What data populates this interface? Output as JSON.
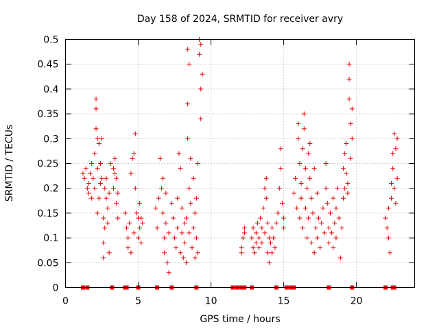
{
  "chart_data": {
    "type": "scatter",
    "title": "Day 158 of 2024, SRMTID for receiver avry",
    "xlabel": "GPS time / hours",
    "ylabel": "SRMTID / TECUs",
    "xlim": [
      0,
      24
    ],
    "ylim": [
      0,
      0.5
    ],
    "x_ticks": [
      0,
      5,
      10,
      15,
      20
    ],
    "x_tick_labels": [
      "0",
      "5",
      "10",
      "15",
      "20"
    ],
    "y_ticks": [
      0,
      0.05,
      0.1,
      0.15,
      0.2,
      0.25,
      0.3,
      0.35,
      0.4,
      0.45,
      0.5
    ],
    "y_tick_labels": [
      "0",
      "0.05",
      "0.1",
      "0.15",
      "0.2",
      "0.25",
      "0.3",
      "0.35",
      "0.4",
      "0.45",
      "0.5"
    ],
    "grid": true,
    "marker": "plus",
    "color": "#e00000",
    "series": [
      {
        "name": "SRMTID",
        "points": [
          [
            1.2,
            0.23
          ],
          [
            1.3,
            0.22
          ],
          [
            1.4,
            0.24
          ],
          [
            1.5,
            0.2
          ],
          [
            1.6,
            0.21
          ],
          [
            1.6,
            0.19
          ],
          [
            1.7,
            0.23
          ],
          [
            1.8,
            0.25
          ],
          [
            1.8,
            0.18
          ],
          [
            1.9,
            0.22
          ],
          [
            2.0,
            0.2
          ],
          [
            2.0,
            0.27
          ],
          [
            2.1,
            0.38
          ],
          [
            2.1,
            0.36
          ],
          [
            2.1,
            0.32
          ],
          [
            2.2,
            0.3
          ],
          [
            2.2,
            0.24
          ],
          [
            2.2,
            0.15
          ],
          [
            2.3,
            0.29
          ],
          [
            2.3,
            0.18
          ],
          [
            2.4,
            0.25
          ],
          [
            2.4,
            0.21
          ],
          [
            2.5,
            0.3
          ],
          [
            2.5,
            0.22
          ],
          [
            2.6,
            0.14
          ],
          [
            2.6,
            0.09
          ],
          [
            2.6,
            0.06
          ],
          [
            2.7,
            0.2
          ],
          [
            2.7,
            0.12
          ],
          [
            2.8,
            0.18
          ],
          [
            2.8,
            0.22
          ],
          [
            2.9,
            0.16
          ],
          [
            2.9,
            0.13
          ],
          [
            3.0,
            0.19
          ],
          [
            3.0,
            0.07
          ],
          [
            3.1,
            0.25
          ],
          [
            3.3,
            0.24
          ],
          [
            3.3,
            0.2
          ],
          [
            3.4,
            0.23
          ],
          [
            3.5,
            0.22
          ],
          [
            3.5,
            0.17
          ],
          [
            3.6,
            0.14
          ],
          [
            3.6,
            0.19
          ],
          [
            3.4,
            0.26
          ],
          [
            4.1,
            0.15
          ],
          [
            4.2,
            0.12
          ],
          [
            4.3,
            0.1
          ],
          [
            4.3,
            0.08
          ],
          [
            4.4,
            0.13
          ],
          [
            4.5,
            0.07
          ],
          [
            4.5,
            0.23
          ],
          [
            4.6,
            0.26
          ],
          [
            4.7,
            0.27
          ],
          [
            4.8,
            0.31
          ],
          [
            4.8,
            0.2
          ],
          [
            4.7,
            0.11
          ],
          [
            4.9,
            0.15
          ],
          [
            5.0,
            0.14
          ],
          [
            5.0,
            0.1
          ],
          [
            5.1,
            0.12
          ],
          [
            5.1,
            0.17
          ],
          [
            5.2,
            0.09
          ],
          [
            5.2,
            0.14
          ],
          [
            5.3,
            0.13
          ],
          [
            6.2,
            0.16
          ],
          [
            6.3,
            0.12
          ],
          [
            6.4,
            0.18
          ],
          [
            6.5,
            0.26
          ],
          [
            6.6,
            0.2
          ],
          [
            6.7,
            0.22
          ],
          [
            6.7,
            0.15
          ],
          [
            6.8,
            0.1
          ],
          [
            6.8,
            0.07
          ],
          [
            6.9,
            0.13
          ],
          [
            6.9,
            0.19
          ],
          [
            7.0,
            0.05
          ],
          [
            7.1,
            0.11
          ],
          [
            7.1,
            0.03
          ],
          [
            7.3,
            0.17
          ],
          [
            7.4,
            0.14
          ],
          [
            7.5,
            0.1
          ],
          [
            7.6,
            0.08
          ],
          [
            7.7,
            0.18
          ],
          [
            7.7,
            0.12
          ],
          [
            7.8,
            0.27
          ],
          [
            7.9,
            0.24
          ],
          [
            7.9,
            0.07
          ],
          [
            8.0,
            0.16
          ],
          [
            8.0,
            0.11
          ],
          [
            8.1,
            0.06
          ],
          [
            8.2,
            0.13
          ],
          [
            8.2,
            0.09
          ],
          [
            8.3,
            0.05
          ],
          [
            8.3,
            0.14
          ],
          [
            8.4,
            0.48
          ],
          [
            8.4,
            0.3
          ],
          [
            8.4,
            0.37
          ],
          [
            8.5,
            0.45
          ],
          [
            8.5,
            0.2
          ],
          [
            8.5,
            0.11
          ],
          [
            8.6,
            0.26
          ],
          [
            8.6,
            0.17
          ],
          [
            8.7,
            0.08
          ],
          [
            8.8,
            0.22
          ],
          [
            8.8,
            0.12
          ],
          [
            8.9,
            0.15
          ],
          [
            8.9,
            0.06
          ],
          [
            9.0,
            0.1
          ],
          [
            9.0,
            0.18
          ],
          [
            9.1,
            0.25
          ],
          [
            9.1,
            0.07
          ],
          [
            9.2,
            0.5
          ],
          [
            9.2,
            0.47
          ],
          [
            9.3,
            0.49
          ],
          [
            9.3,
            0.4
          ],
          [
            9.3,
            0.34
          ],
          [
            9.4,
            0.43
          ],
          [
            12.1,
            0.08
          ],
          [
            12.1,
            0.07
          ],
          [
            12.2,
            0.1
          ],
          [
            12.3,
            0.11
          ],
          [
            12.3,
            0.12
          ],
          [
            12.8,
            0.1
          ],
          [
            12.9,
            0.08
          ],
          [
            12.9,
            0.12
          ],
          [
            13.0,
            0.07
          ],
          [
            13.1,
            0.11
          ],
          [
            13.1,
            0.09
          ],
          [
            13.2,
            0.13
          ],
          [
            13.3,
            0.1
          ],
          [
            13.3,
            0.08
          ],
          [
            13.4,
            0.14
          ],
          [
            13.5,
            0.12
          ],
          [
            13.5,
            0.09
          ],
          [
            13.6,
            0.16
          ],
          [
            13.7,
            0.2
          ],
          [
            13.7,
            0.11
          ],
          [
            13.8,
            0.18
          ],
          [
            13.8,
            0.22
          ],
          [
            13.9,
            0.07
          ],
          [
            13.9,
            0.13
          ],
          [
            14.0,
            0.1
          ],
          [
            14.0,
            0.05
          ],
          [
            14.1,
            0.09
          ],
          [
            14.2,
            0.12
          ],
          [
            14.2,
            0.07
          ],
          [
            14.3,
            0.1
          ],
          [
            14.4,
            0.08
          ],
          [
            14.5,
            0.13
          ],
          [
            14.6,
            0.15
          ],
          [
            14.7,
            0.2
          ],
          [
            14.8,
            0.28
          ],
          [
            14.8,
            0.24
          ],
          [
            14.9,
            0.17
          ],
          [
            15.0,
            0.12
          ],
          [
            15.0,
            0.14
          ],
          [
            15.7,
            0.19
          ],
          [
            15.8,
            0.22
          ],
          [
            15.9,
            0.16
          ],
          [
            16.0,
            0.33
          ],
          [
            16.0,
            0.3
          ],
          [
            16.1,
            0.25
          ],
          [
            16.1,
            0.14
          ],
          [
            16.2,
            0.21
          ],
          [
            16.2,
            0.18
          ],
          [
            16.3,
            0.28
          ],
          [
            16.3,
            0.12
          ],
          [
            16.4,
            0.35
          ],
          [
            16.4,
            0.32
          ],
          [
            16.5,
            0.24
          ],
          [
            16.5,
            0.16
          ],
          [
            16.6,
            0.2
          ],
          [
            16.6,
            0.1
          ],
          [
            16.7,
            0.27
          ],
          [
            16.7,
            0.14
          ],
          [
            16.8,
            0.22
          ],
          [
            16.8,
            0.29
          ],
          [
            16.9,
            0.18
          ],
          [
            16.9,
            0.09
          ],
          [
            17.0,
            0.15
          ],
          [
            17.1,
            0.24
          ],
          [
            17.1,
            0.07
          ],
          [
            17.2,
            0.12
          ],
          [
            17.3,
            0.19
          ],
          [
            17.3,
            0.1
          ],
          [
            17.4,
            0.14
          ],
          [
            17.5,
            0.08
          ],
          [
            17.6,
            0.13
          ],
          [
            17.7,
            0.16
          ],
          [
            17.8,
            0.11
          ],
          [
            17.9,
            0.25
          ],
          [
            17.9,
            0.2
          ],
          [
            18.0,
            0.17
          ],
          [
            18.1,
            0.12
          ],
          [
            18.1,
            0.09
          ],
          [
            18.2,
            0.15
          ],
          [
            18.3,
            0.11
          ],
          [
            18.4,
            0.18
          ],
          [
            18.4,
            0.08
          ],
          [
            18.5,
            0.13
          ],
          [
            18.6,
            0.16
          ],
          [
            18.6,
            0.1
          ],
          [
            18.7,
            0.2
          ],
          [
            18.8,
            0.14
          ],
          [
            18.9,
            0.06
          ],
          [
            19.0,
            0.12
          ],
          [
            19.1,
            0.24
          ],
          [
            19.1,
            0.18
          ],
          [
            19.2,
            0.27
          ],
          [
            19.2,
            0.2
          ],
          [
            19.3,
            0.23
          ],
          [
            19.3,
            0.29
          ],
          [
            19.4,
            0.21
          ],
          [
            19.4,
            0.19
          ],
          [
            19.5,
            0.45
          ],
          [
            19.5,
            0.38
          ],
          [
            19.5,
            0.42
          ],
          [
            19.6,
            0.33
          ],
          [
            19.6,
            0.26
          ],
          [
            19.7,
            0.3
          ],
          [
            19.7,
            0.36
          ],
          [
            22.0,
            0.14
          ],
          [
            22.1,
            0.12
          ],
          [
            22.2,
            0.16
          ],
          [
            22.2,
            0.1
          ],
          [
            22.3,
            0.07
          ],
          [
            22.4,
            0.21
          ],
          [
            22.4,
            0.18
          ],
          [
            22.5,
            0.27
          ],
          [
            22.5,
            0.24
          ],
          [
            22.6,
            0.31
          ],
          [
            22.6,
            0.2
          ],
          [
            22.7,
            0.28
          ],
          [
            22.7,
            0.17
          ],
          [
            22.8,
            0.3
          ],
          [
            22.8,
            0.22
          ]
        ]
      }
    ],
    "baseline_points_x": [
      1.2,
      1.5,
      3.2,
      4.1,
      4.2,
      5.0,
      6.3,
      7.3,
      9.0,
      11.5,
      11.8,
      12.1,
      12.3,
      12.8,
      14.5,
      15.2,
      15.5,
      15.7,
      18.1,
      19.7,
      22.0,
      22.5,
      22.6
    ]
  }
}
